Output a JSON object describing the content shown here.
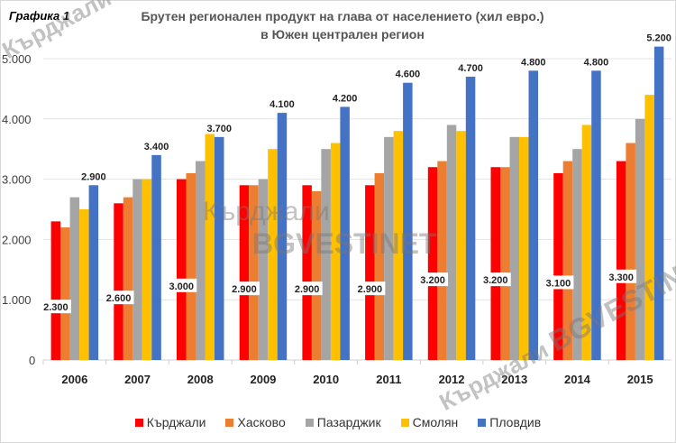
{
  "header": {
    "figure_label": "Графика 1",
    "title_line1": "Брутен регионален продукт на глава от населението (хил евро.)",
    "title_line2": "в Южен централен регион"
  },
  "watermark": {
    "text1": "Кърджали",
    "text2": "BGVESTINET"
  },
  "colors": {
    "Кърджали": "#ff0000",
    "Хасково": "#ed7d31",
    "Пазарджик": "#a5a5a5",
    "Смолян": "#ffc000",
    "Пловдив": "#4472c4"
  },
  "legend": [
    {
      "label": "Кърджали",
      "color": "#ff0000"
    },
    {
      "label": "Хасково",
      "color": "#ed7d31"
    },
    {
      "label": "Пазарджик",
      "color": "#a5a5a5"
    },
    {
      "label": "Смолян",
      "color": "#ffc000"
    },
    {
      "label": "Пловдив",
      "color": "#4472c4"
    }
  ],
  "chart_data": {
    "type": "bar",
    "title": "Брутен регионален продукт на глава от населението (хил евро.) в Южен централен регион",
    "xlabel": "",
    "ylabel": "",
    "ylim": [
      0,
      5000
    ],
    "yticks": [
      "0",
      "1.000",
      "2.000",
      "3.000",
      "4.000",
      "5.000"
    ],
    "grid": true,
    "legend_position": "bottom",
    "categories": [
      "2006",
      "2007",
      "2008",
      "2009",
      "2010",
      "2011",
      "2012",
      "2013",
      "2014",
      "2015"
    ],
    "series": [
      {
        "name": "Кърджали",
        "values": [
          2300,
          2600,
          3000,
          2900,
          2900,
          2900,
          3200,
          3200,
          3100,
          3300
        ],
        "labeled": true
      },
      {
        "name": "Хасково",
        "values": [
          2200,
          2700,
          3100,
          2900,
          2800,
          3100,
          3300,
          3200,
          3300,
          3600
        ],
        "labeled": false
      },
      {
        "name": "Пазарджик",
        "values": [
          2700,
          3000,
          3300,
          3000,
          3500,
          3700,
          3900,
          3700,
          3500,
          4000
        ],
        "labeled": false
      },
      {
        "name": "Смолян",
        "values": [
          2500,
          3000,
          3750,
          3500,
          3600,
          3800,
          3800,
          3700,
          3900,
          4400
        ],
        "labeled": false
      },
      {
        "name": "Пловдив",
        "values": [
          2900,
          3400,
          3700,
          4100,
          4200,
          4600,
          4700,
          4800,
          4800,
          5200
        ],
        "labeled": true
      }
    ],
    "data_labels": {
      "Кърджали": [
        "2.300",
        "2.600",
        "3.000",
        "2.900",
        "2.900",
        "2.900",
        "3.200",
        "3.200",
        "3.100",
        "3.300"
      ],
      "Пловдив": [
        "2.900",
        "3.400",
        "3.700",
        "4.100",
        "4.200",
        "4.600",
        "4.700",
        "4.800",
        "4.800",
        "5.200"
      ]
    }
  }
}
